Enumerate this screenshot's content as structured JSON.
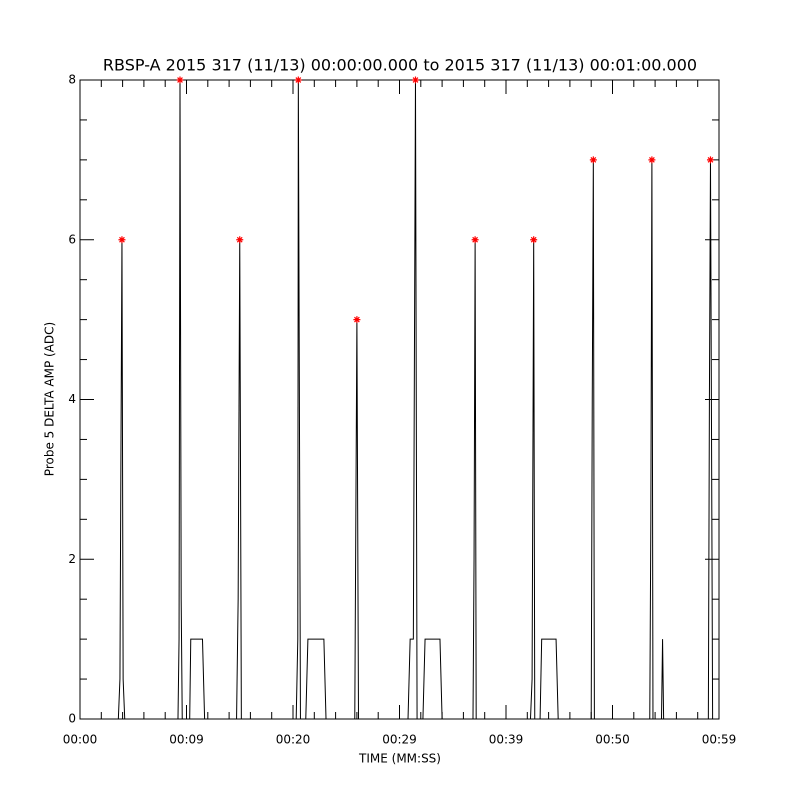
{
  "chart_data": {
    "type": "line",
    "title": "RBSP-A 2015 317 (11/13) 00:00:00.000 to 2015 317 (11/13) 00:01:00.000",
    "xlabel": "TIME (MM:SS)",
    "ylabel": "Probe 5 DELTA AMP (ADC)",
    "xlim": [
      0,
      60
    ],
    "ylim": [
      0,
      8
    ],
    "xticks": [
      {
        "value": 0,
        "label": "00:00"
      },
      {
        "value": 10,
        "label": "00:09"
      },
      {
        "value": 20,
        "label": "00:20"
      },
      {
        "value": 30,
        "label": "00:29"
      },
      {
        "value": 40,
        "label": "00:39"
      },
      {
        "value": 50,
        "label": "00:50"
      },
      {
        "value": 60,
        "label": "00:59"
      }
    ],
    "yticks": [
      0,
      2,
      4,
      6,
      8
    ],
    "series": [
      {
        "color": "#000000",
        "x": [
          0,
          3.6,
          3.75,
          3.85,
          3.94,
          4.05,
          4.2,
          9.2,
          9.3,
          9.39,
          9.5,
          9.6,
          10.3,
          10.4,
          11.5,
          11.7,
          14.7,
          14.85,
          15.0,
          15.15,
          20.3,
          20.45,
          20.5,
          20.7,
          21.2,
          21.4,
          22.9,
          23.1,
          25.8,
          25.9,
          26.0,
          26.15,
          30.8,
          31.0,
          31.3,
          31.5,
          31.65,
          32.2,
          32.4,
          33.8,
          34.0,
          36.9,
          37.0,
          37.1,
          37.2,
          42.3,
          42.45,
          42.6,
          42.7,
          43.2,
          43.35,
          44.7,
          44.9,
          48.0,
          48.1,
          48.2,
          48.3,
          53.5,
          53.6,
          53.7,
          53.8,
          54.6,
          54.7,
          54.8,
          59.0,
          59.1,
          59.2,
          59.4
        ],
        "values": [
          0,
          0,
          0.5,
          3.5,
          6,
          0.5,
          0,
          0,
          1,
          8,
          1.5,
          0,
          0,
          1,
          1,
          0,
          0,
          1.5,
          6,
          0,
          0,
          1,
          8,
          0,
          0,
          1,
          1,
          0,
          0,
          2.5,
          5,
          0,
          0,
          1,
          1,
          8,
          0,
          0,
          1,
          1,
          0,
          0,
          2,
          6,
          0,
          0,
          0.5,
          6,
          0,
          0,
          1,
          1,
          0,
          0,
          4,
          7,
          0,
          0,
          2.5,
          7,
          0,
          0,
          1,
          0,
          0,
          4,
          7,
          0
        ]
      },
      {
        "color": "#ff0000",
        "marker": "*",
        "x": [
          3.94,
          9.39,
          15.0,
          20.5,
          26.0,
          31.5,
          37.1,
          42.6,
          48.2,
          53.7,
          59.2
        ],
        "values": [
          6,
          8,
          6,
          8,
          5,
          8,
          6,
          6,
          7,
          7,
          7
        ]
      }
    ]
  }
}
